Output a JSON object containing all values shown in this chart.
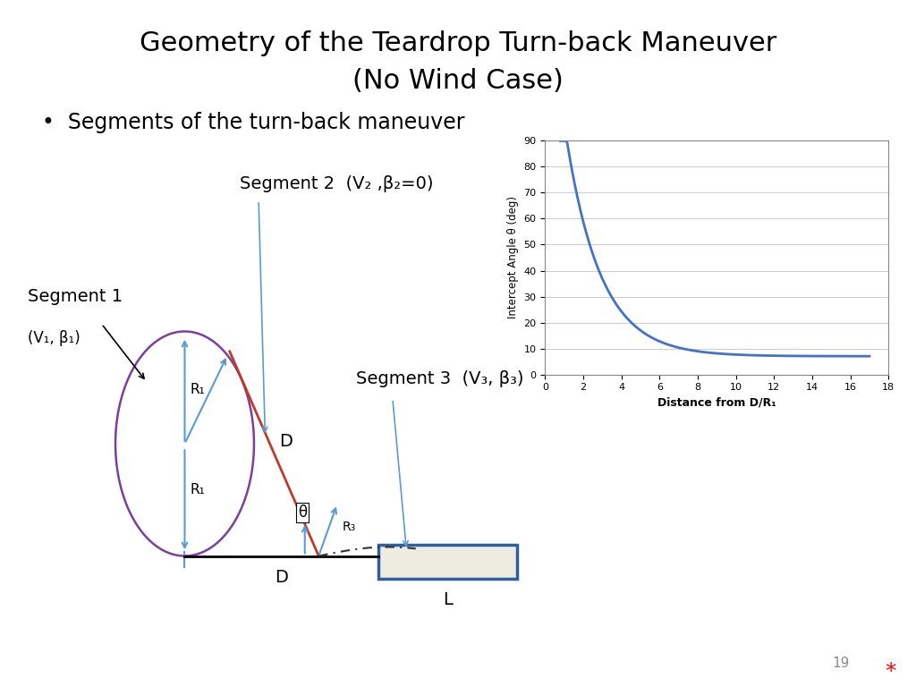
{
  "title_line1": "Geometry of the Teardrop Turn-back Maneuver",
  "title_line2": "(No Wind Case)",
  "title_bg": "#F5A800",
  "title_text_color": "#000000",
  "bullet_text": "Segments of the turn-back maneuver",
  "page_number": "19",
  "bg_color": "#FFFFFF",
  "curve_color_segment1": "#7B3F9E",
  "curve_color_segment2": "#C0392B",
  "line_color": "#5B9BD5",
  "runway_fill": "#EEEBE0",
  "runway_border": "#2E5FA3",
  "plot_line_color": "#4472C4",
  "ylabel": "Intercept Angle θ (deg)",
  "xlabel": "Distance from D/R₁",
  "yticks": [
    0,
    10,
    20,
    30,
    40,
    50,
    60,
    70,
    80,
    90
  ],
  "xticks": [
    0,
    2,
    4,
    6,
    8,
    10,
    12,
    14,
    16,
    18
  ],
  "ylim": [
    0,
    90
  ],
  "xlim": [
    0,
    18
  ]
}
